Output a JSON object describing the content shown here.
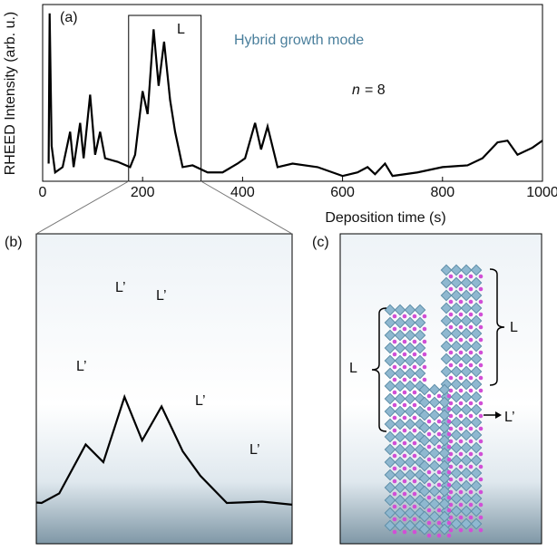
{
  "chart_data": [
    {
      "type": "line",
      "panel_label": "(a)",
      "xlabel": "Deposition time (s)",
      "ylabel": "RHEED Intensity (arb. u.)",
      "annotations": [
        "L",
        "Hybrid growth mode"
      ],
      "n_symbol": "n",
      "n_value": "= 8",
      "xlim": [
        0,
        1000
      ],
      "ylim": [
        0,
        100
      ],
      "xticks": [
        0,
        200,
        400,
        600,
        800,
        1000
      ],
      "x": [
        0,
        12,
        14,
        18,
        25,
        40,
        55,
        62,
        75,
        82,
        95,
        105,
        115,
        125,
        150,
        175,
        185,
        200,
        210,
        222,
        232,
        243,
        255,
        265,
        280,
        300,
        330,
        360,
        390,
        405,
        425,
        437,
        450,
        470,
        500,
        550,
        600,
        630,
        650,
        665,
        685,
        700,
        750,
        800,
        850,
        880,
        910,
        930,
        950,
        980,
        1000
      ],
      "series": [
        {
          "color": "#000000",
          "values": [
            null,
            10,
            95,
            20,
            5,
            8,
            28,
            8,
            33,
            13,
            49,
            15,
            28,
            13,
            11,
            8,
            15,
            51,
            38,
            86,
            54,
            79,
            46,
            28,
            8,
            9,
            5,
            5,
            10,
            13,
            33,
            18,
            31,
            8,
            10,
            8,
            3,
            5,
            8,
            4,
            10,
            3,
            5,
            8,
            9,
            13,
            22,
            23,
            15,
            19,
            23
          ]
        }
      ]
    },
    {
      "type": "line",
      "panel_label": "(b)",
      "xlim": [
        172,
        317
      ],
      "ylim": [
        -22,
        206
      ],
      "annotations": [
        "L’",
        "L’",
        "L’",
        "L’",
        "L’"
      ]
    }
  ],
  "panel_c": {
    "label": "(c)",
    "labels": [
      "L",
      "L",
      "L’"
    ]
  }
}
